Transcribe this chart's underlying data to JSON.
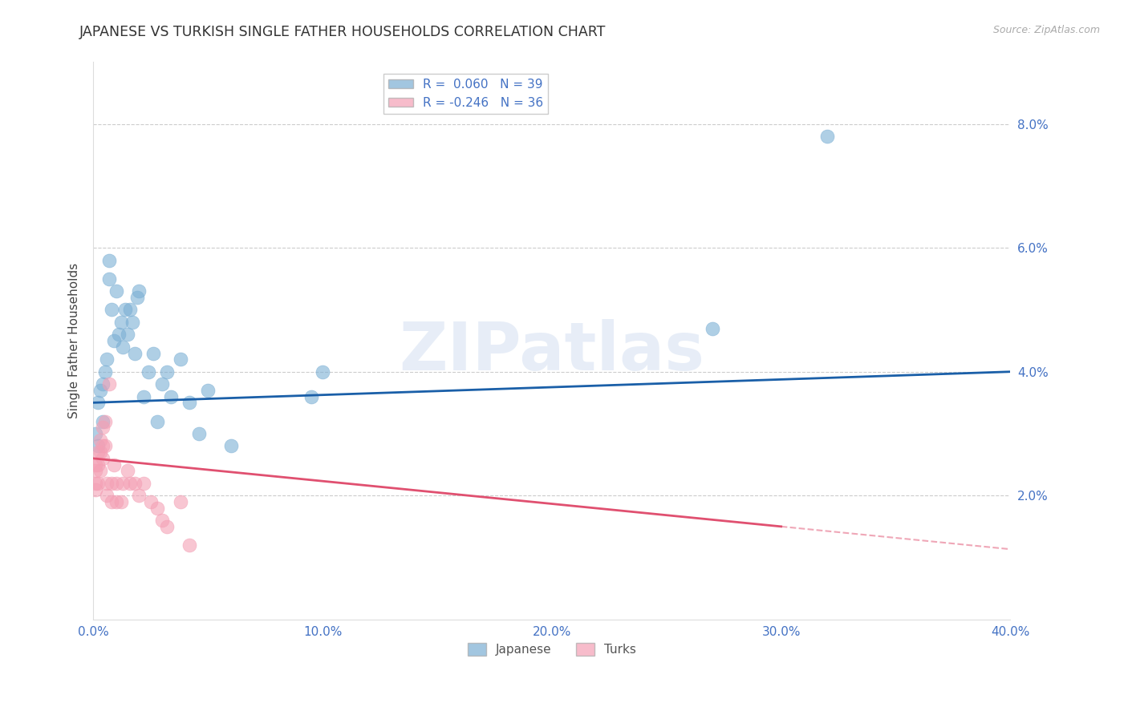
{
  "title": "JAPANESE VS TURKISH SINGLE FATHER HOUSEHOLDS CORRELATION CHART",
  "source": "Source: ZipAtlas.com",
  "xlabel_ticks": [
    "0.0%",
    "10.0%",
    "20.0%",
    "30.0%",
    "40.0%"
  ],
  "xlabel_vals": [
    0.0,
    0.1,
    0.2,
    0.3,
    0.4
  ],
  "ylabel_ticks": [
    "2.0%",
    "4.0%",
    "6.0%",
    "8.0%"
  ],
  "ylabel_vals": [
    0.02,
    0.04,
    0.06,
    0.08
  ],
  "xlim": [
    0.0,
    0.4
  ],
  "ylim": [
    0.0,
    0.09
  ],
  "japanese_x": [
    0.001,
    0.002,
    0.002,
    0.003,
    0.004,
    0.004,
    0.005,
    0.006,
    0.007,
    0.007,
    0.008,
    0.009,
    0.01,
    0.011,
    0.012,
    0.013,
    0.014,
    0.015,
    0.016,
    0.017,
    0.018,
    0.019,
    0.02,
    0.022,
    0.024,
    0.026,
    0.028,
    0.03,
    0.032,
    0.034,
    0.038,
    0.042,
    0.046,
    0.05,
    0.06,
    0.095,
    0.1,
    0.27,
    0.32
  ],
  "japanese_y": [
    0.03,
    0.028,
    0.035,
    0.037,
    0.032,
    0.038,
    0.04,
    0.042,
    0.055,
    0.058,
    0.05,
    0.045,
    0.053,
    0.046,
    0.048,
    0.044,
    0.05,
    0.046,
    0.05,
    0.048,
    0.043,
    0.052,
    0.053,
    0.036,
    0.04,
    0.043,
    0.032,
    0.038,
    0.04,
    0.036,
    0.042,
    0.035,
    0.03,
    0.037,
    0.028,
    0.036,
    0.04,
    0.047,
    0.078
  ],
  "turks_x": [
    0.001,
    0.001,
    0.001,
    0.001,
    0.002,
    0.002,
    0.002,
    0.003,
    0.003,
    0.003,
    0.004,
    0.004,
    0.004,
    0.005,
    0.005,
    0.006,
    0.006,
    0.007,
    0.008,
    0.008,
    0.009,
    0.01,
    0.01,
    0.012,
    0.013,
    0.015,
    0.016,
    0.018,
    0.02,
    0.022,
    0.025,
    0.028,
    0.03,
    0.032,
    0.038,
    0.042
  ],
  "turks_y": [
    0.025,
    0.024,
    0.022,
    0.021,
    0.027,
    0.025,
    0.022,
    0.029,
    0.027,
    0.024,
    0.031,
    0.028,
    0.026,
    0.032,
    0.028,
    0.022,
    0.02,
    0.038,
    0.022,
    0.019,
    0.025,
    0.022,
    0.019,
    0.019,
    0.022,
    0.024,
    0.022,
    0.022,
    0.02,
    0.022,
    0.019,
    0.018,
    0.016,
    0.015,
    0.019,
    0.012
  ],
  "japanese_color": "#7bafd4",
  "turks_color": "#f4a0b5",
  "japanese_line_color": "#1a5fa8",
  "turks_line_color": "#e05070",
  "japanese_R": 0.06,
  "japanese_N": 39,
  "turks_R": -0.246,
  "turks_N": 36,
  "watermark_text": "ZIPatlas",
  "title_color": "#333333",
  "axis_color": "#4472c4",
  "background_color": "#ffffff",
  "grid_color": "#cccccc",
  "ylabel_label": "Single Father Households"
}
